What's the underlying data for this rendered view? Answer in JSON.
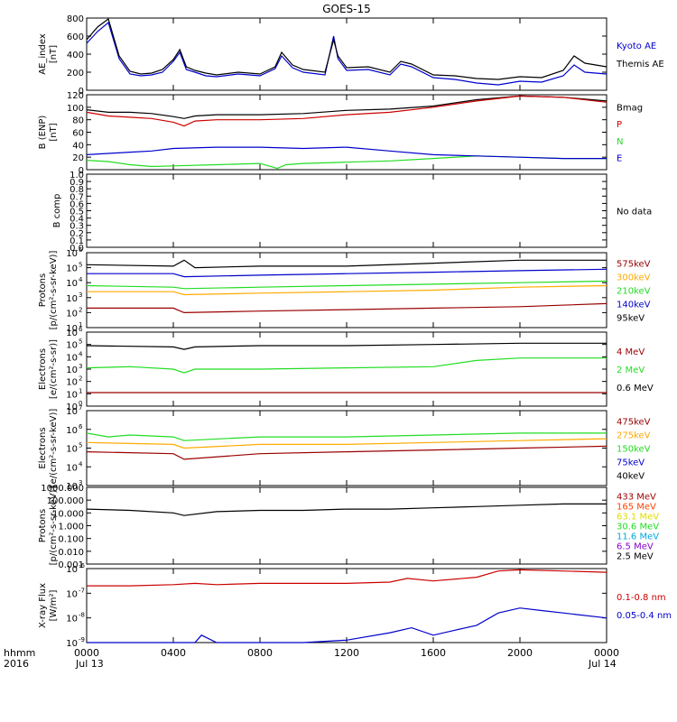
{
  "title": "GOES-15",
  "footer": {
    "time_label": "hhmm",
    "year_label": "2016",
    "start_date": "Jul 13",
    "end_date": "Jul 14",
    "ticks": [
      "0000",
      "0400",
      "0800",
      "1200",
      "1600",
      "2000",
      "0000"
    ]
  },
  "colors": {
    "black": "#000000",
    "blue": "#0000cc",
    "red": "#cc0000",
    "green": "#22dd22",
    "orange": "#ffaa00",
    "darkred": "#990000",
    "cyan": "#00aadd",
    "yellow": "#dddd00",
    "violet": "#8800cc",
    "orangered": "#ff4400"
  },
  "chart_data": [
    {
      "id": "ae",
      "type": "line",
      "ylabel": [
        "AE_index",
        "[nT]"
      ],
      "ylim": [
        0,
        800
      ],
      "yticks": [
        "0",
        "200",
        "400",
        "600",
        "800"
      ],
      "legend": [
        {
          "label": "Kyoto AE",
          "color": "#0000cc"
        },
        {
          "label": "Themis AE",
          "color": "#000000"
        }
      ],
      "series": [
        {
          "name": "Kyoto AE",
          "color": "#0000cc",
          "x": [
            0,
            0.5,
            1,
            1.5,
            2,
            2.5,
            3,
            3.5,
            4,
            4.3,
            4.6,
            5,
            5.5,
            6,
            7,
            8,
            8.7,
            9,
            9.5,
            10,
            11,
            11.4,
            11.6,
            12,
            13,
            14,
            14.5,
            15,
            16,
            17,
            18,
            19,
            20,
            21,
            22,
            22.5,
            23,
            24
          ],
          "y": [
            520,
            650,
            750,
            350,
            180,
            160,
            170,
            200,
            320,
            420,
            230,
            200,
            160,
            150,
            180,
            160,
            240,
            380,
            250,
            200,
            170,
            600,
            350,
            220,
            230,
            170,
            290,
            260,
            140,
            120,
            80,
            60,
            100,
            90,
            160,
            280,
            200,
            180
          ]
        },
        {
          "name": "Themis AE",
          "color": "#000000",
          "x": [
            0,
            0.5,
            1,
            1.5,
            2,
            2.5,
            3,
            3.5,
            4,
            4.3,
            4.6,
            5,
            5.5,
            6,
            7,
            8,
            8.7,
            9,
            9.5,
            10,
            11,
            11.4,
            11.6,
            12,
            13,
            14,
            14.5,
            15,
            16,
            17,
            18,
            19,
            20,
            21,
            22,
            22.5,
            23,
            24
          ],
          "y": [
            560,
            700,
            790,
            380,
            210,
            180,
            190,
            230,
            340,
            450,
            260,
            220,
            190,
            170,
            200,
            180,
            260,
            420,
            280,
            230,
            200,
            560,
            380,
            250,
            260,
            200,
            320,
            290,
            170,
            160,
            130,
            120,
            150,
            140,
            220,
            380,
            300,
            260
          ]
        }
      ]
    },
    {
      "id": "bfield",
      "type": "line",
      "ylabel": [
        "B (ENP)",
        "[nT]"
      ],
      "ylim": [
        0,
        120
      ],
      "yticks": [
        "0",
        "20",
        "40",
        "60",
        "80",
        "100",
        "120"
      ],
      "legend": [
        {
          "label": "Bmag",
          "color": "#000000"
        },
        {
          "label": "P",
          "color": "#cc0000"
        },
        {
          "label": "N",
          "color": "#22dd22"
        },
        {
          "label": "E",
          "color": "#0000cc"
        }
      ],
      "series": [
        {
          "name": "Bmag",
          "color": "#000000",
          "x": [
            0,
            1,
            2,
            3,
            4,
            4.5,
            5,
            6,
            8,
            10,
            12,
            14,
            16,
            18,
            20,
            22,
            24
          ],
          "y": [
            96,
            92,
            92,
            90,
            85,
            82,
            86,
            88,
            88,
            90,
            95,
            97,
            102,
            112,
            118,
            116,
            110
          ]
        },
        {
          "name": "P",
          "color": "#cc0000",
          "x": [
            0,
            1,
            2,
            3,
            4,
            4.5,
            5,
            6,
            8,
            10,
            12,
            14,
            16,
            18,
            20,
            22,
            24
          ],
          "y": [
            92,
            86,
            84,
            82,
            76,
            70,
            78,
            80,
            80,
            82,
            88,
            92,
            100,
            110,
            118,
            116,
            108
          ]
        },
        {
          "name": "N",
          "color": "#22dd22",
          "x": [
            0,
            1,
            2,
            3,
            4,
            6,
            8,
            8.8,
            9.2,
            10,
            12,
            14,
            16,
            18,
            20,
            22,
            24
          ],
          "y": [
            15,
            13,
            8,
            5,
            6,
            8,
            10,
            2,
            8,
            10,
            12,
            14,
            18,
            22,
            20,
            18,
            18
          ]
        },
        {
          "name": "E",
          "color": "#0000cc",
          "x": [
            0,
            1,
            2,
            3,
            4,
            6,
            8,
            10,
            12,
            14,
            16,
            18,
            20,
            22,
            24
          ],
          "y": [
            24,
            26,
            28,
            30,
            34,
            36,
            36,
            34,
            36,
            30,
            24,
            22,
            20,
            18,
            18
          ]
        }
      ]
    },
    {
      "id": "bcomp",
      "type": "line",
      "ylabel": [
        "B comp"
      ],
      "ylim": [
        0,
        1
      ],
      "yticks": [
        "0.0",
        "0.1",
        "0.2",
        "0.3",
        "0.4",
        "0.5",
        "0.6",
        "0.7",
        "0.8",
        "0.9",
        "1.0"
      ],
      "legend": [
        {
          "label": "No data",
          "color": "#000000"
        }
      ],
      "series": []
    },
    {
      "id": "protons",
      "type": "line",
      "ylabel": [
        "Protons",
        "[p/(cm²-s-sr-keV)]"
      ],
      "log": true,
      "ylim_exp": [
        1,
        6
      ],
      "legend": [
        {
          "label": "575keV",
          "color": "#990000"
        },
        {
          "label": "300keV",
          "color": "#ffaa00"
        },
        {
          "label": "210keV",
          "color": "#22dd22"
        },
        {
          "label": "140keV",
          "color": "#0000cc"
        },
        {
          "label": "95keV",
          "color": "#000000"
        }
      ],
      "series": [
        {
          "name": "95keV",
          "color": "#000000",
          "x": [
            0,
            4,
            4.5,
            5,
            8,
            12,
            16,
            20,
            24
          ],
          "y_exp": [
            5.2,
            5.1,
            5.5,
            5.0,
            5.1,
            5.1,
            5.3,
            5.5,
            5.5
          ]
        },
        {
          "name": "140keV",
          "color": "#0000cc",
          "x": [
            0,
            4,
            4.5,
            8,
            12,
            16,
            20,
            24
          ],
          "y_exp": [
            4.6,
            4.6,
            4.4,
            4.5,
            4.6,
            4.7,
            4.8,
            4.9
          ]
        },
        {
          "name": "210keV",
          "color": "#22dd22",
          "x": [
            0,
            4,
            4.5,
            8,
            12,
            16,
            20,
            24
          ],
          "y_exp": [
            3.8,
            3.7,
            3.6,
            3.7,
            3.8,
            3.9,
            4.0,
            4.1
          ]
        },
        {
          "name": "300keV",
          "color": "#ffaa00",
          "x": [
            0,
            4,
            4.5,
            8,
            12,
            16,
            20,
            24
          ],
          "y_exp": [
            3.4,
            3.4,
            3.2,
            3.3,
            3.4,
            3.5,
            3.7,
            3.8
          ]
        },
        {
          "name": "575keV",
          "color": "#990000",
          "x": [
            0,
            4,
            4.5,
            8,
            12,
            16,
            20,
            24
          ],
          "y_exp": [
            2.3,
            2.3,
            2.0,
            2.1,
            2.2,
            2.3,
            2.4,
            2.6
          ]
        }
      ]
    },
    {
      "id": "electrons_mev",
      "type": "line",
      "ylabel": [
        "Electrons",
        "[e/(cm²-s-sr)]"
      ],
      "log": true,
      "ylim_exp": [
        0,
        6
      ],
      "legend": [
        {
          "label": "4 MeV",
          "color": "#990000"
        },
        {
          "label": "2 MeV",
          "color": "#22dd22"
        },
        {
          "label": "0.6 MeV",
          "color": "#000000"
        }
      ],
      "series": [
        {
          "name": "0.6 MeV",
          "color": "#000000",
          "x": [
            0,
            4,
            4.5,
            5,
            8,
            12,
            16,
            20,
            24
          ],
          "y_exp": [
            4.9,
            4.8,
            4.6,
            4.8,
            4.9,
            4.9,
            5.0,
            5.1,
            5.1
          ]
        },
        {
          "name": "2 MeV",
          "color": "#22dd22",
          "x": [
            0,
            2,
            4,
            4.5,
            5,
            8,
            12,
            16,
            18,
            20,
            24
          ],
          "y_exp": [
            3.1,
            3.2,
            3.0,
            2.7,
            3.0,
            3.0,
            3.1,
            3.2,
            3.7,
            3.9,
            3.9
          ]
        },
        {
          "name": "4 MeV",
          "color": "#990000",
          "x": [
            0,
            24
          ],
          "y_exp": [
            1.1,
            1.1
          ]
        }
      ]
    },
    {
      "id": "electrons_kev",
      "type": "line",
      "ylabel": [
        "Electrons",
        "[e/(cm²-s-sr-keV)]"
      ],
      "log": true,
      "ylim_exp": [
        3,
        7
      ],
      "legend": [
        {
          "label": "475keV",
          "color": "#990000"
        },
        {
          "label": "275keV",
          "color": "#ffaa00"
        },
        {
          "label": "150keV",
          "color": "#22dd22"
        },
        {
          "label": "75keV",
          "color": "#0000cc"
        },
        {
          "label": "40keV",
          "color": "#000000"
        }
      ],
      "series": [
        {
          "name": "150keV",
          "color": "#22dd22",
          "x": [
            0,
            1,
            2,
            4,
            4.5,
            8,
            12,
            16,
            20,
            24
          ],
          "y_exp": [
            5.8,
            5.6,
            5.7,
            5.6,
            5.4,
            5.6,
            5.6,
            5.7,
            5.8,
            5.8
          ]
        },
        {
          "name": "275keV",
          "color": "#ffaa00",
          "x": [
            0,
            4,
            4.5,
            8,
            12,
            16,
            20,
            24
          ],
          "y_exp": [
            5.3,
            5.2,
            5.0,
            5.2,
            5.2,
            5.3,
            5.4,
            5.5
          ]
        },
        {
          "name": "475keV",
          "color": "#990000",
          "x": [
            0,
            4,
            4.5,
            8,
            12,
            16,
            20,
            24
          ],
          "y_exp": [
            4.8,
            4.7,
            4.4,
            4.7,
            4.8,
            4.9,
            5.0,
            5.1
          ]
        }
      ]
    },
    {
      "id": "protons_mev",
      "type": "line",
      "ylabel": [
        "Protons",
        "[p/(cm²-s-sr-keV)]"
      ],
      "log": true,
      "ylim_exp": [
        -3,
        3
      ],
      "yticks": [
        "0.001",
        "0.010",
        "0.100",
        "1.000",
        "10.000",
        "100.000",
        "1000.000"
      ],
      "legend": [
        {
          "label": "433 MeV",
          "color": "#990000"
        },
        {
          "label": "165 MeV",
          "color": "#ff4400"
        },
        {
          "label": "63.1 MeV",
          "color": "#dddd00"
        },
        {
          "label": "30.6 MeV",
          "color": "#22dd22"
        },
        {
          "label": "11.6 MeV",
          "color": "#00aadd"
        },
        {
          "label": "6.5 MeV",
          "color": "#8800cc"
        },
        {
          "label": "2.5 MeV",
          "color": "#000000"
        }
      ],
      "series": [
        {
          "name": "2.5 MeV",
          "color": "#000000",
          "x": [
            0,
            2,
            4,
            4.5,
            6,
            8,
            10,
            12,
            14,
            16,
            18,
            20,
            22,
            24
          ],
          "y_exp": [
            1.3,
            1.2,
            1.0,
            0.8,
            1.1,
            1.2,
            1.2,
            1.3,
            1.3,
            1.4,
            1.5,
            1.6,
            1.7,
            1.7
          ]
        }
      ]
    },
    {
      "id": "xray",
      "type": "line",
      "ylabel": [
        "X-ray Flux",
        "[W/m²]"
      ],
      "log": true,
      "ylim_exp": [
        -9,
        -6
      ],
      "legend": [
        {
          "label": "0.1-0.8 nm",
          "color": "#cc0000"
        },
        {
          "label": "0.05-0.4 nm",
          "color": "#0000cc"
        }
      ],
      "series": [
        {
          "name": "0.1-0.8 nm",
          "color": "#cc0000",
          "x": [
            0,
            2,
            4,
            5,
            6,
            8,
            10,
            12,
            14,
            14.8,
            16,
            18,
            19,
            20,
            22,
            24
          ],
          "y_exp": [
            -6.7,
            -6.7,
            -6.65,
            -6.6,
            -6.65,
            -6.6,
            -6.6,
            -6.6,
            -6.55,
            -6.4,
            -6.5,
            -6.35,
            -6.1,
            -6.05,
            -6.1,
            -6.15
          ]
        },
        {
          "name": "0.05-0.4 nm",
          "color": "#0000cc",
          "x": [
            0,
            5,
            5.3,
            6,
            10,
            12,
            14,
            15,
            16,
            17,
            18,
            19,
            20,
            21,
            22,
            24
          ],
          "y_exp": [
            -9.0,
            -9.0,
            -8.7,
            -9.0,
            -9.0,
            -8.9,
            -8.6,
            -8.4,
            -8.7,
            -8.5,
            -8.3,
            -7.8,
            -7.6,
            -7.7,
            -7.8,
            -8.0
          ]
        }
      ]
    }
  ]
}
